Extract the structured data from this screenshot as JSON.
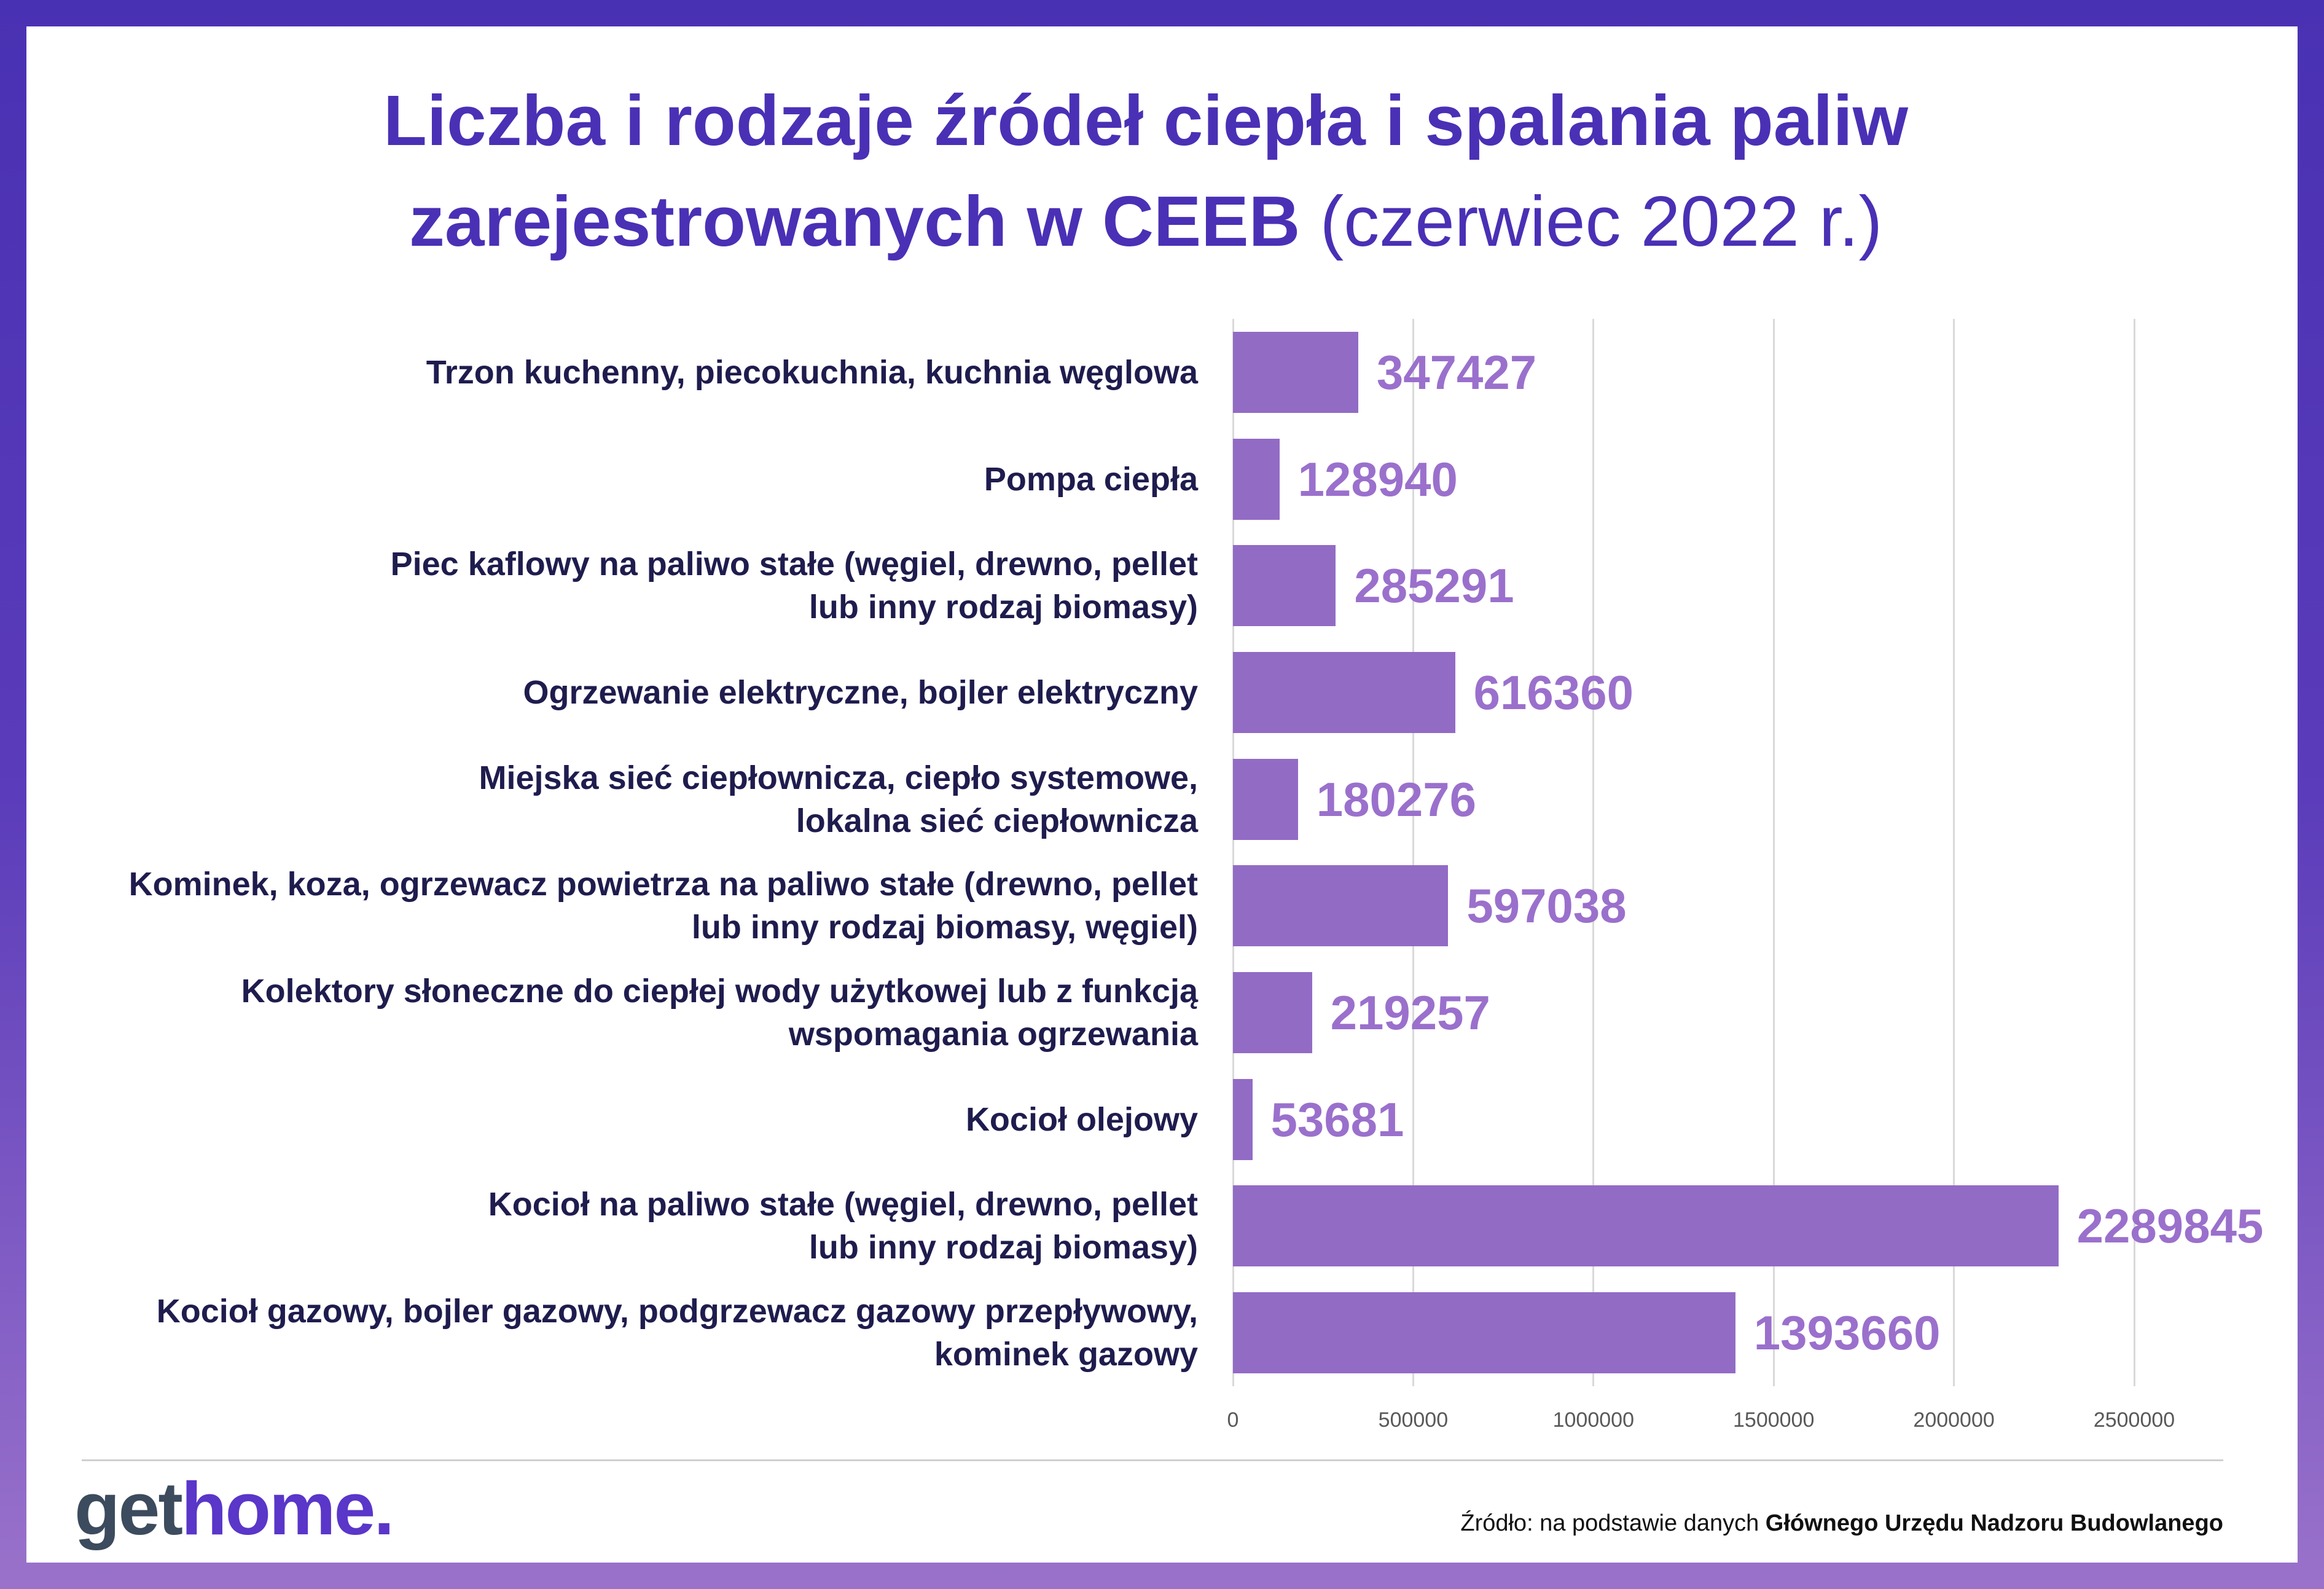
{
  "chart_data": {
    "type": "bar",
    "orientation": "horizontal",
    "title": "Liczba i rodzaje źródeł ciepła i spalania paliw zarejestrowanych w CEEB",
    "subtitle": "(czerwiec 2022 r.)",
    "categories": [
      "Trzon kuchenny, piecokuchnia, kuchnia węglowa",
      "Pompa ciepła",
      "Piec kaflowy na paliwo stałe (węgiel, drewno, pellet\nlub inny rodzaj biomasy)",
      "Ogrzewanie elektryczne, bojler elektryczny",
      "Miejska sieć ciepłownicza, ciepło systemowe,\nlokalna sieć ciepłownicza",
      "Kominek, koza, ogrzewacz powietrza na paliwo stałe (drewno, pellet\nlub inny rodzaj biomasy, węgiel)",
      "Kolektory słoneczne do ciepłej wody użytkowej lub z funkcją\nwspomagania ogrzewania",
      "Kocioł olejowy",
      "Kocioł na paliwo stałe (węgiel, drewno, pellet\nlub inny rodzaj biomasy)",
      "Kocioł gazowy, bojler gazowy, podgrzewacz gazowy przepływowy,\nkominek gazowy"
    ],
    "values": [
      347427,
      128940,
      285291,
      616360,
      180276,
      597038,
      219257,
      53681,
      2289845,
      1393660
    ],
    "xlim": [
      0,
      2500000
    ],
    "xticks": [
      0,
      500000,
      1000000,
      1500000,
      2000000,
      2500000
    ],
    "grid": true,
    "grid_axis": "x",
    "legend": "none",
    "data_labels": "outside-end",
    "colors": {
      "bar": "#926bc5",
      "data_label": "#9a70cc",
      "category_label": "#1f1c4e",
      "tick_label": "#595959",
      "gridline": "#d9d9d9",
      "title": "#4a30b5"
    }
  },
  "branding": {
    "logo_text_dark": "get",
    "logo_text_accent": "home.",
    "colors": {
      "dark": "#3c4b5d",
      "accent": "#5a36c9"
    }
  },
  "source": {
    "prefix": "Źródło: na podstawie danych",
    "institution": "Głównego Urzędu Nadzoru Budowlanego"
  },
  "frame": {
    "gradient_top": "#4931b3",
    "gradient_bottom": "#9a72cb"
  }
}
